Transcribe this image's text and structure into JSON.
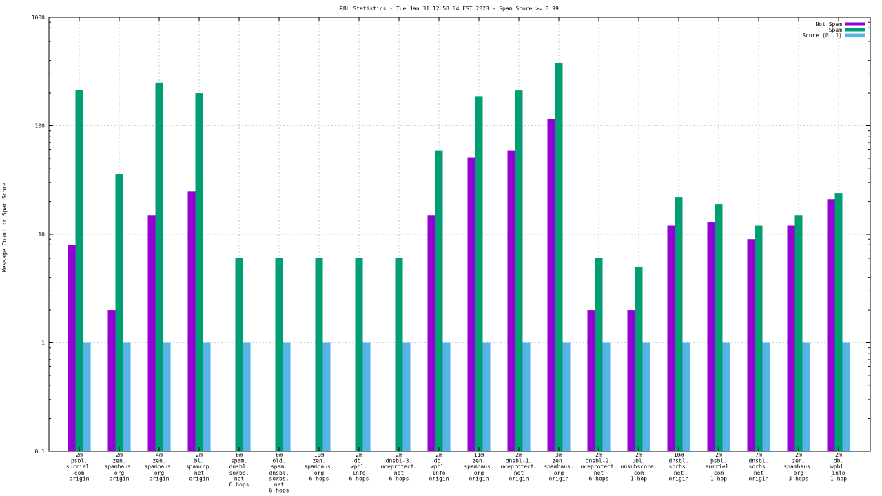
{
  "chart_data": {
    "type": "bar",
    "title": "RBL Statistics - Tue Jan 31 12:58:04 EST 2023 - Spam Score >= 0.99",
    "ylabel": "Message Count or Spam Score",
    "xlabel": "",
    "yscale": "log",
    "ylim": [
      0.1,
      1000
    ],
    "yticks": [
      "0.1",
      "1",
      "10",
      "100",
      "1000"
    ],
    "grid": true,
    "legend_position": "top-right",
    "categories": [
      [
        "2@",
        "psbl.",
        "surriel.",
        "com",
        "origin"
      ],
      [
        "2@",
        "zen.",
        "spamhaus.",
        "org",
        "origin"
      ],
      [
        "4@",
        "zen.",
        "spamhaus.",
        "org",
        "origin"
      ],
      [
        "2@",
        "bl.",
        "spamcop.",
        "net",
        "origin"
      ],
      [
        "6@",
        "spam.",
        "dnsbl.",
        "sorbs.",
        "net",
        "6 hops"
      ],
      [
        "6@",
        "old.",
        "spam.",
        "dnsbl.",
        "sorbs.",
        "net",
        "6 hops"
      ],
      [
        "10@",
        "zen.",
        "spamhaus.",
        "org",
        "6 hops"
      ],
      [
        "2@",
        "db.",
        "wpbl.",
        "info",
        "6 hops"
      ],
      [
        "2@",
        "dnsbl-3.",
        "uceprotect.",
        "net",
        "6 hops"
      ],
      [
        "2@",
        "db.",
        "wpbl.",
        "info",
        "origin"
      ],
      [
        "11@",
        "zen.",
        "spamhaus.",
        "org",
        "origin"
      ],
      [
        "2@",
        "dnsbl-1.",
        "uceprotect.",
        "net",
        "origin"
      ],
      [
        "3@",
        "zen.",
        "spamhaus.",
        "org",
        "origin"
      ],
      [
        "2@",
        "dnsbl-2.",
        "uceprotect.",
        "net",
        "6 hops"
      ],
      [
        "2@",
        "ubl.",
        "unsubscore.",
        "com",
        "1 hop"
      ],
      [
        "10@",
        "dnsbl.",
        "sorbs.",
        "net",
        "origin"
      ],
      [
        "2@",
        "psbl.",
        "surriel.",
        "com",
        "1 hop"
      ],
      [
        "7@",
        "dnsbl.",
        "sorbs.",
        "net",
        "origin"
      ],
      [
        "2@",
        "zen.",
        "spamhaus.",
        "org",
        "3 hops"
      ],
      [
        "2@",
        "db.",
        "wpbl.",
        "info",
        "1 hop"
      ]
    ],
    "series": [
      {
        "name": "Not Spam",
        "color": "#9400d3",
        "values": [
          8,
          2,
          15,
          25,
          null,
          null,
          null,
          null,
          null,
          15,
          51,
          59,
          115,
          2,
          2,
          12,
          13,
          9,
          12,
          21
        ]
      },
      {
        "name": "Spam",
        "color": "#009e73",
        "values": [
          215,
          36,
          250,
          200,
          6,
          6,
          6,
          6,
          6,
          59,
          185,
          212,
          380,
          6,
          5,
          22,
          19,
          12,
          15,
          24
        ]
      },
      {
        "name": "Score (0..1)",
        "color": "#56b4e9",
        "values": [
          1,
          1,
          1,
          1,
          1,
          1,
          1,
          1,
          1,
          1,
          1,
          1,
          1,
          1,
          1,
          1,
          1,
          1,
          1,
          1
        ]
      }
    ]
  }
}
